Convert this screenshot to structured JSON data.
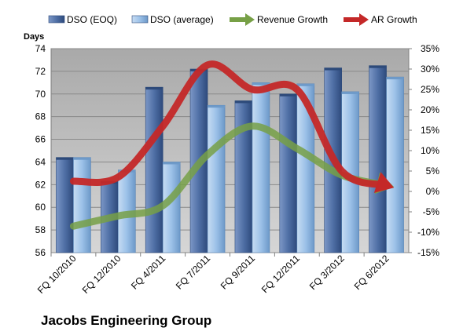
{
  "chart_data": {
    "type": "bar",
    "company": "Jacobs Engineering Group",
    "ylabel": "Days",
    "ylim": [
      56,
      74
    ],
    "y_ticks": [
      "56",
      "58",
      "60",
      "62",
      "64",
      "66",
      "68",
      "70",
      "72",
      "74"
    ],
    "y2lim": [
      -15,
      35
    ],
    "y2_ticks": [
      "-15%",
      "-10%",
      "-5%",
      "0%",
      "5%",
      "10%",
      "15%",
      "20%",
      "25%",
      "30%",
      "35%"
    ],
    "categories": [
      "FQ 10/2010",
      "FQ 12/2010",
      "FQ 4/2011",
      "FQ 7/2011",
      "FQ 9/2011",
      "FQ 12/2011",
      "FQ 3/2012",
      "FQ 6/2012"
    ],
    "series": [
      {
        "name": "DSO (EOQ)",
        "kind": "bar",
        "axis": "left",
        "values": [
          64.4,
          62.3,
          70.6,
          72.2,
          69.4,
          70.0,
          72.3,
          72.5
        ]
      },
      {
        "name": "DSO (average)",
        "kind": "bar",
        "axis": "left",
        "values": [
          64.4,
          63.3,
          64.0,
          69.0,
          71.0,
          70.9,
          70.2,
          71.5
        ]
      },
      {
        "name": "Revenue Growth",
        "kind": "line",
        "axis": "right",
        "values": [
          -8.5,
          -6.0,
          -3.5,
          9.0,
          16.0,
          10.5,
          4.0,
          1.5
        ]
      },
      {
        "name": "AR Growth",
        "kind": "line",
        "axis": "right",
        "values": [
          2.5,
          3.5,
          16.0,
          31.0,
          25.0,
          25.0,
          5.0,
          1.5
        ]
      }
    ],
    "legend_position": "top",
    "grid": true,
    "colors": {
      "dso_eoq": "#4f6fa5",
      "dso_avg": "#9cc1e8",
      "revenue_growth": "#77a046",
      "ar_growth": "#c42828",
      "plot_background": "#c0c0c0"
    }
  }
}
